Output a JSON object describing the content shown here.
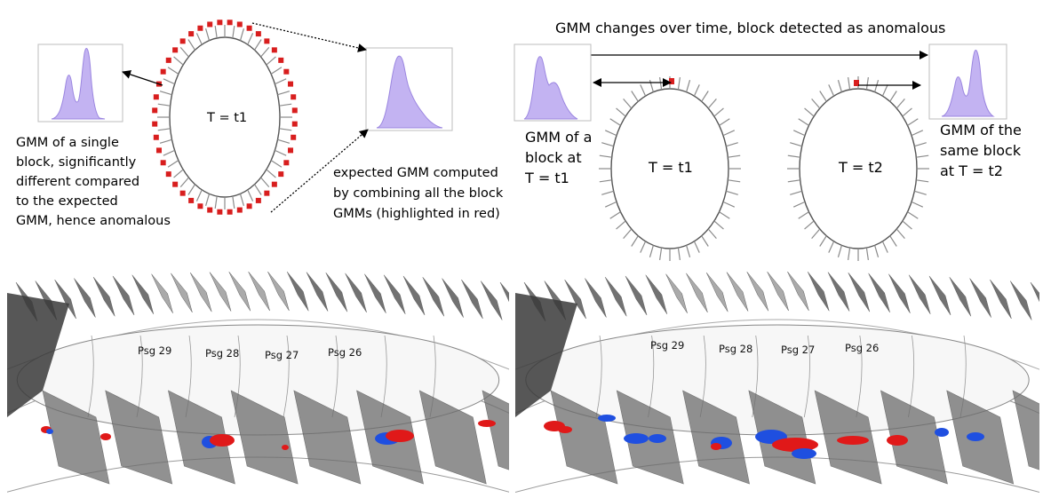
{
  "left_panel": {
    "ring_label": "T = t1",
    "single_block_caption": [
      "GMM of a single",
      "block, significantly",
      "different compared",
      "to the expected",
      "GMM, hence anomalous"
    ],
    "expected_caption": [
      "expected GMM computed",
      "by combining all the block",
      "GMMs (highlighted in red)"
    ]
  },
  "right_panel": {
    "title": "GMM changes over time, block detected as anomalous",
    "ring1_label": "T = t1",
    "ring2_label": "T = t2",
    "caption_t1": [
      "GMM of a",
      "block at",
      "T = t1"
    ],
    "caption_t2": [
      "GMM of the",
      "same block",
      "at T = t2"
    ]
  },
  "renders": {
    "left_passages": [
      "Psg 29",
      "Psg 28",
      "Psg 27",
      "Psg 26"
    ],
    "right_passages": [
      "Psg 29",
      "Psg 28",
      "Psg 27",
      "Psg 26"
    ]
  },
  "colors": {
    "gmm_fill": "#c3b3f2",
    "gmm_stroke": "#9b86e0",
    "highlight": "#d81e1e",
    "blade": "#808080",
    "anomaly_red": "#e01919",
    "anomaly_blue": "#1f4fe0"
  }
}
